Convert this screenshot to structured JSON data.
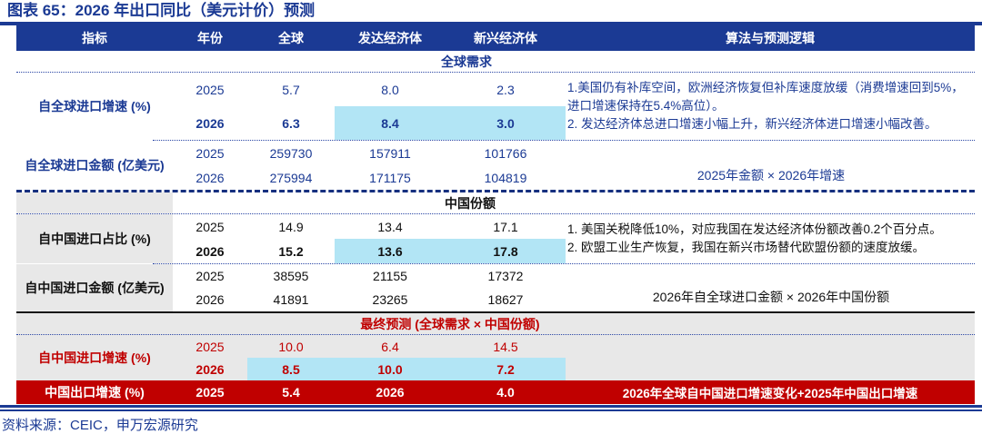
{
  "title": "图表 65：2026 年出口同比（美元计价）预测",
  "source": "资料来源：CEIC，申万宏源研究",
  "colors": {
    "navy": "#1b3a94",
    "red": "#c00000",
    "highlight_cyan": "#b2e5f5",
    "section_gray": "#e8e8e8"
  },
  "table": {
    "headers": {
      "indicator": "指标",
      "year": "年份",
      "global": "全球",
      "developed": "发达经济体",
      "emerging": "新兴经济体",
      "logic": "算法与预测逻辑"
    },
    "s1": {
      "band": "全球需求",
      "g1": {
        "label": "自全球进口增速 (%)",
        "r2025": {
          "year": "2025",
          "global": "5.7",
          "developed": "8.0",
          "emerging": "2.3"
        },
        "r2026": {
          "year": "2026",
          "global": "6.3",
          "developed": "8.4",
          "emerging": "3.0"
        },
        "logic1": "1.美国仍有补库空间，欧洲经济恢复但补库速度放缓（消费增速回到5%，进口增速保持在5.4%高位）。",
        "logic2": "2. 发达经济体总进口增速小幅上升，新兴经济体进口增速小幅改善。"
      },
      "g2": {
        "label": "自全球进口金额 (亿美元)",
        "r2025": {
          "year": "2025",
          "global": "259730",
          "developed": "157911",
          "emerging": "101766"
        },
        "r2026": {
          "year": "2026",
          "global": "275994",
          "developed": "171175",
          "emerging": "104819"
        },
        "logic": "2025年金额 × 2026年增速"
      }
    },
    "s2": {
      "band": "中国份额",
      "g1": {
        "label": "自中国进口占比 (%)",
        "r2025": {
          "year": "2025",
          "global": "14.9",
          "developed": "13.4",
          "emerging": "17.1"
        },
        "r2026": {
          "year": "2026",
          "global": "15.2",
          "developed": "13.6",
          "emerging": "17.8"
        },
        "logic1": "1. 美国关税降低10%，对应我国在发达经济体份额改善0.2个百分点。",
        "logic2": "2. 欧盟工业生产恢复，我国在新兴市场替代欧盟份额的速度放缓。"
      },
      "g2": {
        "label": "自中国进口金额 (亿美元)",
        "r2025": {
          "year": "2025",
          "global": "38595",
          "developed": "21155",
          "emerging": "17372"
        },
        "r2026": {
          "year": "2026",
          "global": "41891",
          "developed": "23265",
          "emerging": "18627"
        },
        "logic": "2026年自全球进口金额 × 2026年中国份额"
      }
    },
    "s3": {
      "band": "最终预测 (全球需求 × 中国份额)",
      "g1": {
        "label": "自中国进口增速 (%)",
        "r2025": {
          "year": "2025",
          "global": "10.0",
          "developed": "6.4",
          "emerging": "14.5"
        },
        "r2026": {
          "year": "2026",
          "global": "8.5",
          "developed": "10.0",
          "emerging": "7.2"
        }
      }
    },
    "final": {
      "label": "中国出口增速 (%)",
      "c1": "2025",
      "c2": "5.4",
      "c3": "2026",
      "c4": "4.0",
      "logic": "2026年全球自中国进口增速变化+2025年中国出口增速"
    }
  }
}
